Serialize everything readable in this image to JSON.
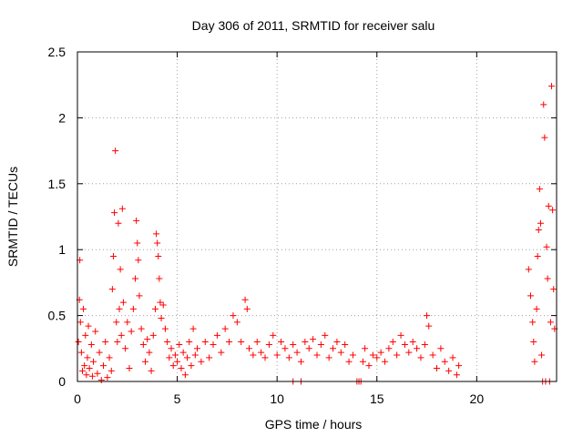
{
  "chart_data": {
    "type": "scatter",
    "title": "Day 306 of 2011, SRMTID for receiver salu",
    "xlabel": "GPS time / hours",
    "ylabel": "SRMTID / TECUs",
    "xlim": [
      0,
      24
    ],
    "ylim": [
      0,
      2.5
    ],
    "xticks": [
      0,
      5,
      10,
      15,
      20
    ],
    "yticks": [
      0,
      0.5,
      1,
      1.5,
      2,
      2.5
    ],
    "xtick_labels": [
      "0",
      "5",
      "10",
      "15",
      "20"
    ],
    "ytick_labels": [
      "0",
      "0.5",
      "1",
      "1.5",
      "2",
      "2.5"
    ],
    "grid": true,
    "marker": "plus",
    "color": "#ff0000",
    "series": [
      {
        "name": "SRMTID",
        "points": [
          [
            0.05,
            0.3
          ],
          [
            0.1,
            0.62
          ],
          [
            0.12,
            0.92
          ],
          [
            0.15,
            0.45
          ],
          [
            0.2,
            0.22
          ],
          [
            0.25,
            0.08
          ],
          [
            0.3,
            0.55
          ],
          [
            0.35,
            0.12
          ],
          [
            0.4,
            0.35
          ],
          [
            0.45,
            0.05
          ],
          [
            0.5,
            0.18
          ],
          [
            0.55,
            0.42
          ],
          [
            0.6,
            0.1
          ],
          [
            0.7,
            0.28
          ],
          [
            0.75,
            0.04
          ],
          [
            0.8,
            0.15
          ],
          [
            0.9,
            0.38
          ],
          [
            1.0,
            0.06
          ],
          [
            1.1,
            0.22
          ],
          [
            1.2,
            0.01
          ],
          [
            1.3,
            0.12
          ],
          [
            1.4,
            0.3
          ],
          [
            1.5,
            0.03
          ],
          [
            1.6,
            0.18
          ],
          [
            1.7,
            0.08
          ],
          [
            1.75,
            0.7
          ],
          [
            1.8,
            0.95
          ],
          [
            1.85,
            1.28
          ],
          [
            1.9,
            1.75
          ],
          [
            1.95,
            0.45
          ],
          [
            2.0,
            0.3
          ],
          [
            2.05,
            1.2
          ],
          [
            2.1,
            0.55
          ],
          [
            2.15,
            0.85
          ],
          [
            2.2,
            0.35
          ],
          [
            2.25,
            1.31
          ],
          [
            2.3,
            0.6
          ],
          [
            2.4,
            0.25
          ],
          [
            2.5,
            0.45
          ],
          [
            2.6,
            0.1
          ],
          [
            2.7,
            0.38
          ],
          [
            2.8,
            0.55
          ],
          [
            2.9,
            0.78
          ],
          [
            2.95,
            1.22
          ],
          [
            3.0,
            1.05
          ],
          [
            3.05,
            0.92
          ],
          [
            3.1,
            0.65
          ],
          [
            3.2,
            0.4
          ],
          [
            3.3,
            0.28
          ],
          [
            3.4,
            0.15
          ],
          [
            3.5,
            0.32
          ],
          [
            3.6,
            0.22
          ],
          [
            3.7,
            0.08
          ],
          [
            3.8,
            0.35
          ],
          [
            3.9,
            0.55
          ],
          [
            3.95,
            1.12
          ],
          [
            4.0,
            1.05
          ],
          [
            4.05,
            0.95
          ],
          [
            4.1,
            0.78
          ],
          [
            4.15,
            0.6
          ],
          [
            4.2,
            0.48
          ],
          [
            4.3,
            0.58
          ],
          [
            4.4,
            0.4
          ],
          [
            4.5,
            0.3
          ],
          [
            4.6,
            0.18
          ],
          [
            4.7,
            0.25
          ],
          [
            4.8,
            0.12
          ],
          [
            4.9,
            0.2
          ],
          [
            5.0,
            0.15
          ],
          [
            5.1,
            0.28
          ],
          [
            5.2,
            0.1
          ],
          [
            5.3,
            0.22
          ],
          [
            5.4,
            0.05
          ],
          [
            5.5,
            0.18
          ],
          [
            5.6,
            0.3
          ],
          [
            5.7,
            0.12
          ],
          [
            5.8,
            0.4
          ],
          [
            5.9,
            0.2
          ],
          [
            6.0,
            0.25
          ],
          [
            6.2,
            0.15
          ],
          [
            6.4,
            0.3
          ],
          [
            6.6,
            0.18
          ],
          [
            6.8,
            0.28
          ],
          [
            7.0,
            0.35
          ],
          [
            7.2,
            0.22
          ],
          [
            7.4,
            0.4
          ],
          [
            7.6,
            0.3
          ],
          [
            7.8,
            0.5
          ],
          [
            8.0,
            0.45
          ],
          [
            8.2,
            0.3
          ],
          [
            8.4,
            0.62
          ],
          [
            8.5,
            0.55
          ],
          [
            8.6,
            0.25
          ],
          [
            8.8,
            0.2
          ],
          [
            9.0,
            0.3
          ],
          [
            9.2,
            0.22
          ],
          [
            9.4,
            0.18
          ],
          [
            9.6,
            0.28
          ],
          [
            9.8,
            0.35
          ],
          [
            10.0,
            0.2
          ],
          [
            10.2,
            0.3
          ],
          [
            10.4,
            0.25
          ],
          [
            10.6,
            0.18
          ],
          [
            10.8,
            0.28
          ],
          [
            10.8,
            0.0
          ],
          [
            11.2,
            0.0
          ],
          [
            11.0,
            0.22
          ],
          [
            11.2,
            0.15
          ],
          [
            11.4,
            0.3
          ],
          [
            11.6,
            0.25
          ],
          [
            11.8,
            0.32
          ],
          [
            12.0,
            0.2
          ],
          [
            12.2,
            0.28
          ],
          [
            12.4,
            0.35
          ],
          [
            12.6,
            0.18
          ],
          [
            12.8,
            0.25
          ],
          [
            13.0,
            0.3
          ],
          [
            13.2,
            0.22
          ],
          [
            13.4,
            0.28
          ],
          [
            13.6,
            0.15
          ],
          [
            13.8,
            0.2
          ],
          [
            14.0,
            0.0
          ],
          [
            14.1,
            0.0
          ],
          [
            14.2,
            0.0
          ],
          [
            14.3,
            0.15
          ],
          [
            14.4,
            0.25
          ],
          [
            14.6,
            0.12
          ],
          [
            14.8,
            0.2
          ],
          [
            15.0,
            0.18
          ],
          [
            15.2,
            0.22
          ],
          [
            15.4,
            0.15
          ],
          [
            15.6,
            0.25
          ],
          [
            15.8,
            0.3
          ],
          [
            16.0,
            0.2
          ],
          [
            16.2,
            0.35
          ],
          [
            16.4,
            0.28
          ],
          [
            16.6,
            0.22
          ],
          [
            16.8,
            0.3
          ],
          [
            17.0,
            0.25
          ],
          [
            17.2,
            0.18
          ],
          [
            17.4,
            0.28
          ],
          [
            17.5,
            0.5
          ],
          [
            17.6,
            0.42
          ],
          [
            17.8,
            0.2
          ],
          [
            18.0,
            0.1
          ],
          [
            18.2,
            0.25
          ],
          [
            18.4,
            0.15
          ],
          [
            18.6,
            0.08
          ],
          [
            18.8,
            0.18
          ],
          [
            19.0,
            0.05
          ],
          [
            19.1,
            0.12
          ],
          [
            22.6,
            0.85
          ],
          [
            22.7,
            0.65
          ],
          [
            22.8,
            0.45
          ],
          [
            22.85,
            0.3
          ],
          [
            22.9,
            0.15
          ],
          [
            23.0,
            0.55
          ],
          [
            23.05,
            0.95
          ],
          [
            23.1,
            1.15
          ],
          [
            23.15,
            1.46
          ],
          [
            23.2,
            1.2
          ],
          [
            23.25,
            0.2
          ],
          [
            23.3,
            0.0
          ],
          [
            23.35,
            2.1
          ],
          [
            23.4,
            1.85
          ],
          [
            23.45,
            0.0
          ],
          [
            23.5,
            1.02
          ],
          [
            23.55,
            0.78
          ],
          [
            23.6,
            1.33
          ],
          [
            23.65,
            0.0
          ],
          [
            23.7,
            0.45
          ],
          [
            23.75,
            2.24
          ],
          [
            23.8,
            1.3
          ],
          [
            23.85,
            0.7
          ],
          [
            23.9,
            0.4
          ]
        ]
      }
    ]
  }
}
